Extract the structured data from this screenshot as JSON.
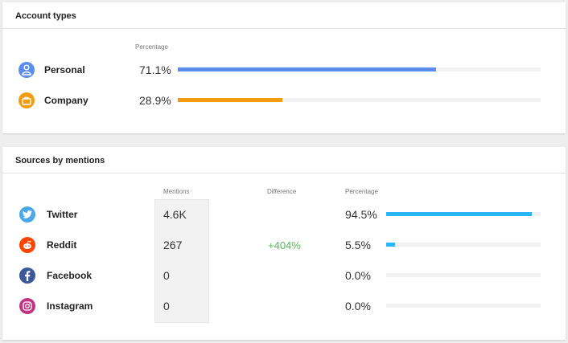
{
  "account_types": {
    "title": "Account types",
    "percentage_label": "Percentage",
    "rows": [
      {
        "label": "Personal",
        "value": "71.1%",
        "fraction": 0.711,
        "color": "#5b8def",
        "icon": "user-icon"
      },
      {
        "label": "Company",
        "value": "28.9%",
        "fraction": 0.289,
        "color": "#f39c12",
        "icon": "briefcase-icon"
      }
    ]
  },
  "sources": {
    "title": "Sources by mentions",
    "mentions_label": "Mentions",
    "difference_label": "Difference",
    "percentage_label": "Percentage",
    "rows": [
      {
        "label": "Twitter",
        "mentions": "4.6K",
        "difference": "",
        "value": "94.5%",
        "fraction": 0.945,
        "icon": "twitter-icon",
        "icon_color": "#4aa8e8"
      },
      {
        "label": "Reddit",
        "mentions": "267",
        "difference": "+404%",
        "value": "5.5%",
        "fraction": 0.055,
        "icon": "reddit-icon",
        "icon_color": "#ff4500"
      },
      {
        "label": "Facebook",
        "mentions": "0",
        "difference": "",
        "value": "0.0%",
        "fraction": 0.0,
        "icon": "facebook-icon",
        "icon_color": "#3b5998"
      },
      {
        "label": "Instagram",
        "mentions": "0",
        "difference": "",
        "value": "0.0%",
        "fraction": 0.0,
        "icon": "instagram-icon",
        "icon_color": "#c13584"
      }
    ],
    "bar_color": "#29b6f6",
    "difference_color": "#5cb85c"
  }
}
